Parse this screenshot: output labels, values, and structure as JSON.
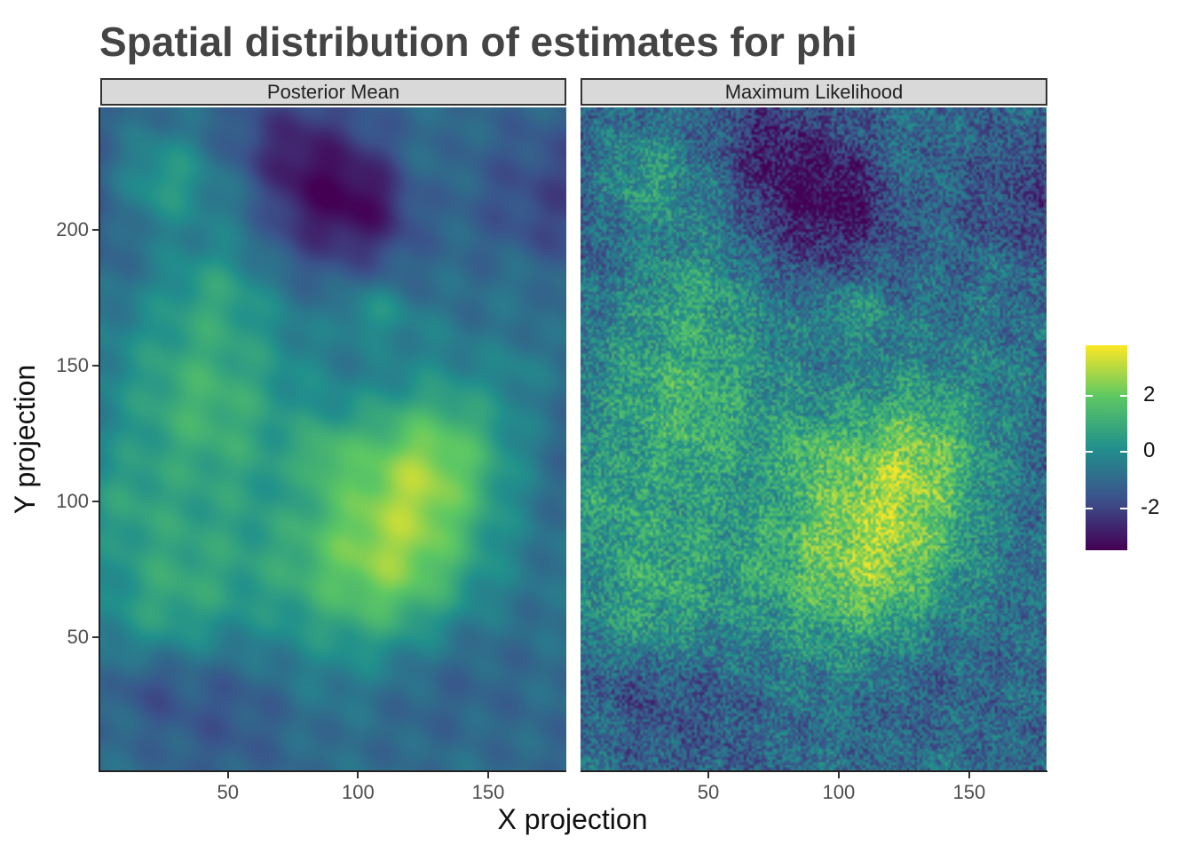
{
  "chart_data": {
    "type": "heatmap",
    "title": "Spatial distribution of estimates for phi",
    "xlabel": "X projection",
    "ylabel": "Y projection",
    "xlim": [
      1,
      180
    ],
    "ylim": [
      1,
      245
    ],
    "x_ticks": [
      50,
      100,
      150
    ],
    "y_ticks": [
      50,
      100,
      150,
      200
    ],
    "facets": [
      "Posterior Mean",
      "Maximum Likelihood"
    ],
    "colorbar": {
      "palette": "viridis",
      "range": [
        -3.5,
        3.8
      ],
      "ticks": [
        2,
        0,
        -2
      ],
      "tick_labels": [
        "2",
        "0",
        "-2"
      ],
      "colors": [
        "#440154",
        "#3b528b",
        "#21908c",
        "#5dc863",
        "#fde725"
      ]
    },
    "legend_position": "right",
    "grid": false
  }
}
